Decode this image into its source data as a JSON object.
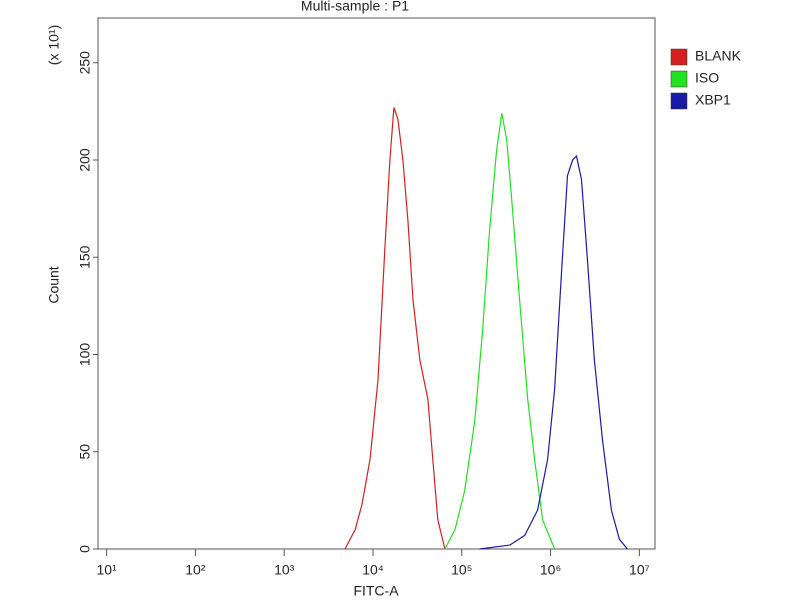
{
  "chart_data": {
    "type": "line",
    "title": "Multi-sample : P1",
    "x_label": "FITC-A",
    "y_label": "Count",
    "y_multiplier": "(x 10¹)",
    "x_log": true,
    "xlim": [
      8,
      15000000
    ],
    "xticks": [
      {
        "value": 10,
        "label": "10¹"
      },
      {
        "value": 100,
        "label": "10²"
      },
      {
        "value": 1000,
        "label": "10³"
      },
      {
        "value": 10000,
        "label": "10⁴"
      },
      {
        "value": 100000,
        "label": "10⁵"
      },
      {
        "value": 1000000,
        "label": "10⁶"
      },
      {
        "value": 10000000,
        "label": "10⁷"
      }
    ],
    "ylim": [
      0,
      273
    ],
    "yticks": [
      0,
      50,
      100,
      150,
      200,
      250
    ],
    "legend": "upper right outside",
    "series": [
      {
        "name": "BLANK",
        "color": "#d42020",
        "x": [
          4840,
          6300,
          7520,
          9250,
          11400,
          13600,
          15500,
          17200,
          19100,
          21700,
          24700,
          28200,
          33800,
          41500,
          47200,
          53700,
          64500
        ],
        "values": [
          0,
          10,
          23,
          46,
          87,
          154,
          200,
          227,
          221,
          200,
          169,
          128,
          97,
          77,
          46,
          15,
          0
        ]
      },
      {
        "name": "ISO",
        "color": "#22e022",
        "x": [
          64500,
          83800,
          108000,
          140000,
          172000,
          206000,
          247000,
          282000,
          321000,
          374000,
          448000,
          552000,
          661000,
          813000,
          1110000
        ],
        "values": [
          0,
          10,
          30,
          66,
          113,
          164,
          205,
          224,
          210,
          174,
          128,
          77,
          46,
          15,
          0
        ]
      },
      {
        "name": "XBP1",
        "color": "#1a1aa8",
        "x": [
          158000,
          347000,
          511000,
          714000,
          925000,
          1110000,
          1330000,
          1550000,
          1770000,
          1960000,
          2230000,
          2600000,
          3120000,
          3840000,
          4840000,
          5960000,
          7330000
        ],
        "values": [
          0,
          2,
          7,
          20,
          46,
          82,
          143,
          192,
          200,
          202,
          190,
          149,
          97,
          56,
          20,
          5,
          0
        ]
      }
    ]
  }
}
